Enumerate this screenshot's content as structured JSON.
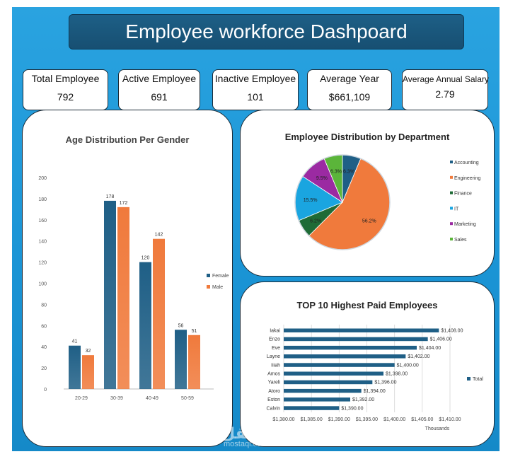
{
  "title": "Employee workforce Dashpoard",
  "kpis": [
    {
      "label": "Total Employee",
      "value": "792"
    },
    {
      "label": "Active Employee",
      "value": "691"
    },
    {
      "label": "Inactive Employee",
      "value": "101"
    },
    {
      "label": "Average Year",
      "value": "$661,109"
    },
    {
      "label": "Average Annual Salary",
      "value": "2.79"
    }
  ],
  "colors": {
    "female": "#1f5f86",
    "male": "#f07a3c",
    "accounting": "#1f5f86",
    "engineering": "#f07a3c",
    "finance": "#1e6b36",
    "it": "#1aa5e0",
    "marketing": "#9b2aa2",
    "sales": "#5bb53a"
  },
  "watermark": {
    "arabic": "مستقل",
    "latin": "mostaql.com"
  },
  "chart_data": [
    {
      "type": "bar",
      "title": "Age Distribution Per Gender",
      "categories": [
        "20-29",
        "30-39",
        "40-49",
        "50-59"
      ],
      "series": [
        {
          "name": "Female",
          "values": [
            41,
            178,
            120,
            56
          ]
        },
        {
          "name": "Male",
          "values": [
            32,
            172,
            142,
            51
          ]
        }
      ],
      "yticks": [
        "0",
        "20",
        "40",
        "60",
        "80",
        "100",
        "120",
        "140",
        "160",
        "180",
        "200"
      ],
      "ylim": [
        0,
        200
      ],
      "legend": "right"
    },
    {
      "type": "pie",
      "title": "Employee Distribution by Department",
      "slices": [
        {
          "name": "Accounting",
          "value": 6.3,
          "label": "6.3%"
        },
        {
          "name": "Engineering",
          "value": 56.2,
          "label": "56.2%"
        },
        {
          "name": "Finance",
          "value": 6.2,
          "label": "6.2%"
        },
        {
          "name": "IT",
          "value": 15.5,
          "label": "15.5%"
        },
        {
          "name": "Marketing",
          "value": 9.5,
          "label": "9.5%"
        },
        {
          "name": "Sales",
          "value": 6.3,
          "label": "6.3%"
        }
      ],
      "legend": "right"
    },
    {
      "type": "bar",
      "orientation": "horizontal",
      "title": "TOP 10 Highest Paid Employees",
      "categories": [
        "Iakai",
        "Enzo",
        "Eve",
        "Layne",
        "Iiiah",
        "Amos",
        "Yareli",
        "Atoro",
        "Eston",
        "Calvin"
      ],
      "series": [
        {
          "name": "Total",
          "values": [
            1408.0,
            1406.0,
            1404.0,
            1402.0,
            1400.0,
            1398.0,
            1396.0,
            1394.0,
            1392.0,
            1390.0
          ],
          "labels": [
            "$1,408.00",
            "$1,406.00",
            "$1,404.00",
            "$1,402.00",
            "$1,400.00",
            "$1,398.00",
            "$1,396.00",
            "$1,394.00",
            "$1,392.00",
            "$1,390.00"
          ]
        }
      ],
      "xlim": [
        1380,
        1410
      ],
      "xticks": [
        "$1,380.00",
        "$1,385.00",
        "$1,390.00",
        "$1,395.00",
        "$1,400.00",
        "$1,405.00",
        "$1,410.00"
      ],
      "xlabel": "Thousands",
      "legend": "right"
    }
  ]
}
